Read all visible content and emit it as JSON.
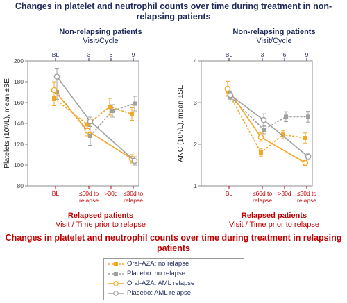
{
  "title_top": "Changes in platelet and neutrophil counts over time during treatment in non-relapsing patients",
  "title_bottom": "Changes in platelet and neutrophil counts over time during treatment in relapsing patients",
  "colors": {
    "navy": "#1f2a5a",
    "red": "#c00000",
    "oral_aza": "#f5a623",
    "placebo": "#a0a0a0"
  },
  "legend": [
    {
      "label": "Oral-AZA: no relapse",
      "color": "#f5a623",
      "dashed": true,
      "marker": "filled-square"
    },
    {
      "label": "Placebo: no relapse",
      "color": "#a0a0a0",
      "dashed": true,
      "marker": "filled-square"
    },
    {
      "label": "Oral-AZA: AML relapse",
      "color": "#f5a623",
      "dashed": false,
      "marker": "open-circle"
    },
    {
      "label": "Placebo: AML relapse",
      "color": "#a0a0a0",
      "dashed": false,
      "marker": "open-circle"
    }
  ],
  "chart_data": [
    {
      "type": "line",
      "panel": "platelets",
      "ylabel": "Platelets (10⁹/L), mean ±SE",
      "ylim": [
        80,
        200
      ],
      "yticks": [
        "80",
        "100",
        "120",
        "140",
        "160",
        "180",
        "200"
      ],
      "top_header": {
        "title": "Non-relapsing patients",
        "subtitle": "Visit/Cycle"
      },
      "top_ticks": [
        "BL",
        "3",
        "6",
        "9"
      ],
      "bottom_header": {
        "title": "Relapsed patients",
        "subtitle": "Visit / Time prior to relapse"
      },
      "bottom_ticks": [
        [
          "BL"
        ],
        [
          "≤60d to",
          "relapse"
        ],
        [
          ">30d",
          ""
        ],
        [
          "≤30d to",
          "relapse"
        ]
      ],
      "series": [
        {
          "name": "Oral-AZA: no relapse",
          "axis": "top",
          "x": [
            "BL",
            "3",
            "6",
            "9"
          ],
          "y": [
            164,
            139,
            156,
            149
          ],
          "err": [
            7,
            8,
            8,
            6
          ]
        },
        {
          "name": "Placebo: no relapse",
          "axis": "top",
          "x": [
            "BL",
            "3",
            "6",
            "9"
          ],
          "y": [
            170,
            128,
            152,
            159
          ],
          "err": [
            7,
            9,
            6,
            7
          ]
        },
        {
          "name": "Oral-AZA: AML relapse",
          "axis": "bottom",
          "x": [
            "BL",
            "≤60d to relapse",
            "≤30d to relapse"
          ],
          "y": [
            172,
            133,
            106
          ],
          "err": [
            8,
            5,
            4
          ]
        },
        {
          "name": "Placebo: AML relapse",
          "axis": "bottom",
          "x": [
            "BL",
            "≤60d to relapse",
            "≤30d to relapse"
          ],
          "y": [
            185,
            142,
            104
          ],
          "err": [
            8,
            4,
            4
          ]
        }
      ]
    },
    {
      "type": "line",
      "panel": "anc",
      "ylabel": "ANC (10⁹/L), mean ±SE",
      "ylim": [
        1,
        4
      ],
      "yticks": [
        "1",
        "2",
        "3",
        "4"
      ],
      "top_header": {
        "title": "Non-relapsing patients",
        "subtitle": "Visit/Cycle"
      },
      "top_ticks": [
        "BL",
        "3",
        "6",
        "9"
      ],
      "bottom_header": {
        "title": "Relapsed patients",
        "subtitle": "Visit / Time prior to relapse"
      },
      "bottom_ticks": [
        [
          "BL"
        ],
        [
          "≤60d to",
          "relapse"
        ],
        [
          ">30d",
          ""
        ],
        [
          "≤30d to",
          "relapse"
        ]
      ],
      "series": [
        {
          "name": "Oral-AZA: no relapse",
          "axis": "top",
          "x": [
            "BL",
            "3",
            "6",
            "9"
          ],
          "y": [
            3.27,
            1.8,
            2.23,
            2.15
          ],
          "err": [
            0.1,
            0.1,
            0.1,
            0.12
          ]
        },
        {
          "name": "Placebo: no relapse",
          "axis": "top",
          "x": [
            "BL",
            "3",
            "6",
            "9"
          ],
          "y": [
            3.14,
            2.35,
            2.66,
            2.66
          ],
          "err": [
            0.1,
            0.1,
            0.12,
            0.13
          ]
        },
        {
          "name": "Oral-AZA: AML relapse",
          "axis": "bottom",
          "x": [
            "BL",
            "≤60d to relapse",
            "≤30d to relapse"
          ],
          "y": [
            3.33,
            2.17,
            1.55
          ],
          "err": [
            0.18,
            0.1,
            0.06
          ]
        },
        {
          "name": "Placebo: AML relapse",
          "axis": "bottom",
          "x": [
            "BL",
            "≤60d to relapse",
            "≤30d to relapse"
          ],
          "y": [
            3.18,
            2.58,
            1.7
          ],
          "err": [
            0.1,
            0.15,
            0.07
          ]
        }
      ]
    }
  ]
}
